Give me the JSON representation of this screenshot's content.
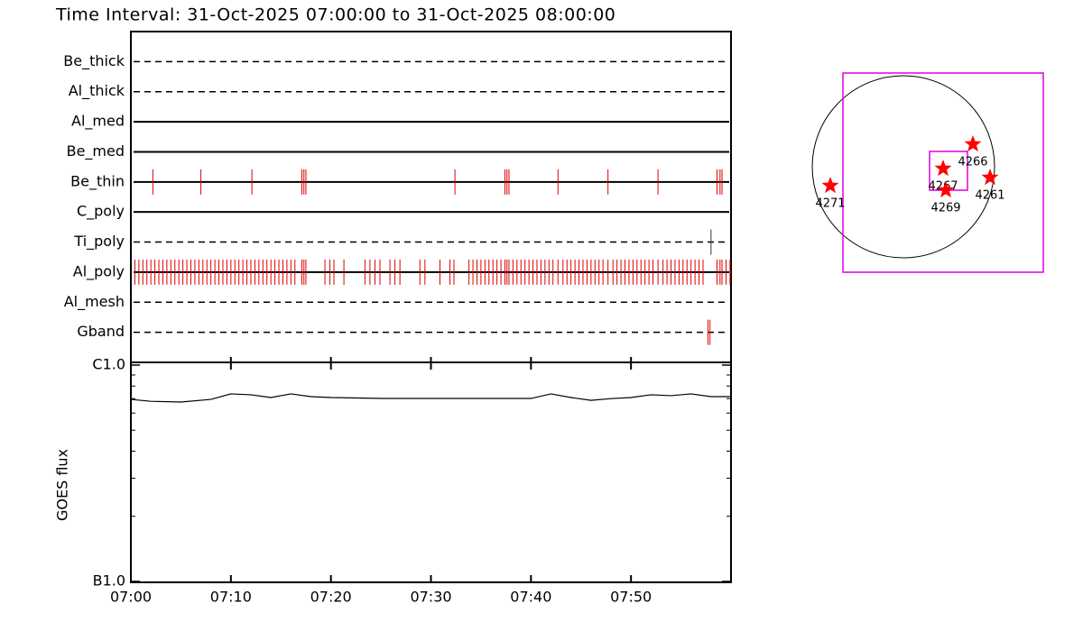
{
  "chart_data": [
    {
      "type": "event",
      "title": "Time Interval: 31-Oct-2025 07:00:00 to 31-Oct-2025 08:00:00",
      "xlim": [
        0,
        60
      ],
      "rows": [
        {
          "label": "Be_thick",
          "style": "dashed",
          "color": "#e00000",
          "events": []
        },
        {
          "label": "Al_thick",
          "style": "dashed",
          "color": "#e00000",
          "events": []
        },
        {
          "label": "Al_med",
          "style": "solid",
          "color": "#e00000",
          "events": []
        },
        {
          "label": "Be_med",
          "style": "solid",
          "color": "#e00000",
          "events": []
        },
        {
          "label": "Be_thin",
          "style": "solid",
          "color": "#e00000",
          "events": [
            2.2,
            7.0,
            12.1,
            17.1,
            17.3,
            17.5,
            32.4,
            37.4,
            37.6,
            37.8,
            42.7,
            47.7,
            52.7,
            58.6,
            58.9,
            59.1
          ]
        },
        {
          "label": "C_poly",
          "style": "solid",
          "color": "#e00000",
          "events": []
        },
        {
          "label": "Ti_poly",
          "style": "dashed",
          "color": "#333333",
          "events": [
            58.0
          ]
        },
        {
          "label": "Al_poly",
          "style": "solid",
          "color": "#e00000",
          "events": [
            0.4,
            0.8,
            1.2,
            1.6,
            2.0,
            2.4,
            2.8,
            3.2,
            3.6,
            4.0,
            4.4,
            4.8,
            5.2,
            5.6,
            6.0,
            6.4,
            6.8,
            7.2,
            7.6,
            8.0,
            8.4,
            8.8,
            9.2,
            9.6,
            10.0,
            10.4,
            10.8,
            11.2,
            11.6,
            12.0,
            12.4,
            12.8,
            13.2,
            13.6,
            14.0,
            14.4,
            14.8,
            15.2,
            15.6,
            16.0,
            16.4,
            17.1,
            17.3,
            17.5,
            19.4,
            19.9,
            20.3,
            21.3,
            23.4,
            23.9,
            24.4,
            24.9,
            25.9,
            26.4,
            26.9,
            28.9,
            29.4,
            30.9,
            31.9,
            32.3,
            33.8,
            34.2,
            34.6,
            35.0,
            35.4,
            35.8,
            36.2,
            36.6,
            37.0,
            37.4,
            37.6,
            37.8,
            38.2,
            38.6,
            39.0,
            39.4,
            39.8,
            40.2,
            40.6,
            41.0,
            41.4,
            41.8,
            42.2,
            42.7,
            43.2,
            43.6,
            44.0,
            44.4,
            44.8,
            45.2,
            45.6,
            46.0,
            46.4,
            46.8,
            47.2,
            47.7,
            48.2,
            48.6,
            49.0,
            49.4,
            49.8,
            50.2,
            50.6,
            51.0,
            51.4,
            51.8,
            52.2,
            52.7,
            53.2,
            53.6,
            54.0,
            54.4,
            54.8,
            55.2,
            55.6,
            56.0,
            56.4,
            56.8,
            57.2,
            58.6,
            58.9,
            59.1,
            59.5,
            59.9
          ]
        },
        {
          "label": "Al_mesh",
          "style": "dashed",
          "color": "#e00000",
          "events": []
        },
        {
          "label": "Gband",
          "style": "dashed",
          "color": "#e00000",
          "events": [
            57.7,
            57.9
          ]
        }
      ]
    },
    {
      "type": "line",
      "ylabel": "GOES flux",
      "log": true,
      "color": "#000000",
      "xlim": [
        0,
        60
      ],
      "xticks": [
        {
          "value": 0,
          "label": "07:00"
        },
        {
          "value": 10,
          "label": "07:10"
        },
        {
          "value": 20,
          "label": "07:20"
        },
        {
          "value": 30,
          "label": "07:30"
        },
        {
          "value": 40,
          "label": "07:40"
        },
        {
          "value": 50,
          "label": "07:50"
        }
      ],
      "ylim": [
        1e-07,
        1e-06
      ],
      "yticks": [
        {
          "value": 1e-07,
          "label": "B1.0"
        },
        {
          "value": 1e-06,
          "label": "C1.0"
        }
      ],
      "yminorticks": [
        2e-07,
        3e-07,
        4e-07,
        5e-07,
        6e-07,
        7e-07,
        8e-07,
        9e-07
      ],
      "x": [
        0,
        2,
        5,
        8,
        10,
        12,
        14,
        16,
        18,
        20,
        25,
        30,
        35,
        40,
        42,
        44,
        46,
        48,
        50,
        52,
        54,
        56,
        58,
        60
      ],
      "values": [
        6.94e-07,
        6.8e-07,
        6.75e-07,
        6.94e-07,
        7.36e-07,
        7.29e-07,
        7.08e-07,
        7.36e-07,
        7.15e-07,
        7.08e-07,
        7.01e-07,
        7.01e-07,
        7.01e-07,
        7.01e-07,
        7.36e-07,
        7.08e-07,
        6.87e-07,
        7e-07,
        7.08e-07,
        7.29e-07,
        7.22e-07,
        7.36e-07,
        7.15e-07,
        7.15e-07
      ]
    }
  ],
  "map": {
    "regions": [
      {
        "label": "4271"
      },
      {
        "label": "4267"
      },
      {
        "label": "4269"
      },
      {
        "label": "4266"
      },
      {
        "label": "4261"
      }
    ]
  }
}
